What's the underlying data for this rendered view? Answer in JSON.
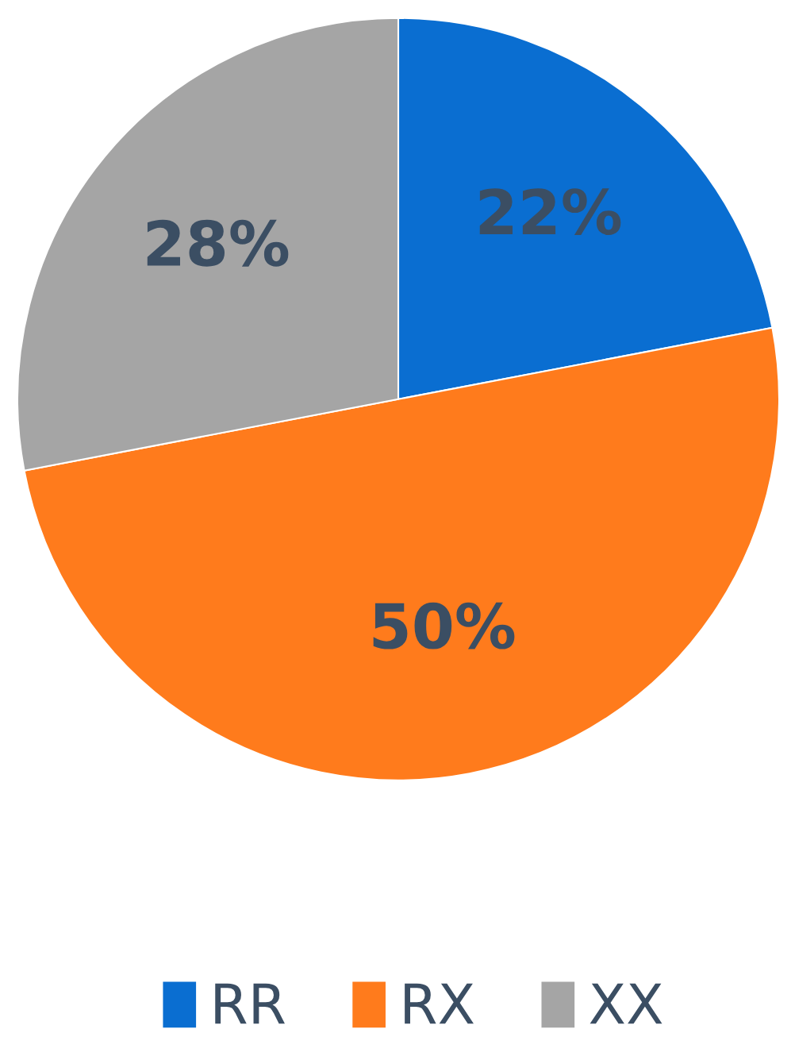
{
  "chart_data": {
    "type": "pie",
    "categories": [
      "RR",
      "RX",
      "XX"
    ],
    "values": [
      22,
      50,
      28
    ],
    "colors": [
      "#0a6ed1",
      "#ff7b1c",
      "#a5a5a5"
    ],
    "value_labels": [
      "22%",
      "50%",
      "28%"
    ],
    "legend": "bottom"
  }
}
